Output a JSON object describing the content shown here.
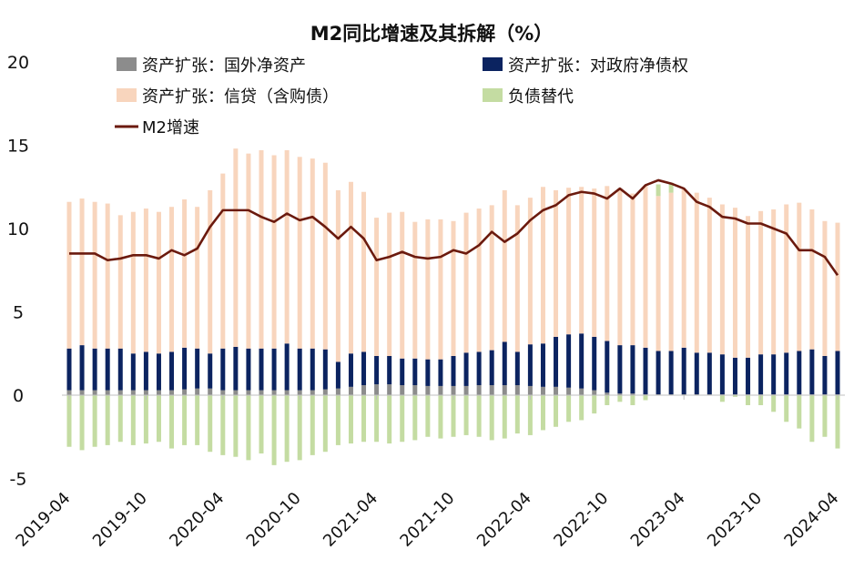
{
  "chart_data": {
    "type": "bar",
    "stacked": true,
    "title": "M2同比增速及其拆解（%）",
    "xlabel": "",
    "ylabel": "",
    "ylim": [
      -5,
      20
    ],
    "yticks": [
      -5,
      0,
      5,
      10,
      15,
      20
    ],
    "ytick_labels": [
      "-5",
      "0",
      "5",
      "10",
      "15",
      "20"
    ],
    "legend_position": "top-left",
    "grid": false,
    "colors": {
      "foreign": "#8c8c8c",
      "gov": "#0b2360",
      "credit": "#f8d5bd",
      "sub": "#c4dca2",
      "m2": "#6b1a0e"
    },
    "categories": [
      "2019-04",
      "2019-05",
      "2019-06",
      "2019-07",
      "2019-08",
      "2019-09",
      "2019-10",
      "2019-11",
      "2019-12",
      "2020-01",
      "2020-02",
      "2020-03",
      "2020-04",
      "2020-05",
      "2020-06",
      "2020-07",
      "2020-08",
      "2020-09",
      "2020-10",
      "2020-11",
      "2020-12",
      "2021-01",
      "2021-02",
      "2021-03",
      "2021-04",
      "2021-05",
      "2021-06",
      "2021-07",
      "2021-08",
      "2021-09",
      "2021-10",
      "2021-11",
      "2021-12",
      "2022-01",
      "2022-02",
      "2022-03",
      "2022-04",
      "2022-05",
      "2022-06",
      "2022-07",
      "2022-08",
      "2022-09",
      "2022-10",
      "2022-11",
      "2022-12",
      "2023-01",
      "2023-02",
      "2023-03",
      "2023-04",
      "2023-05",
      "2023-06",
      "2023-07",
      "2023-08",
      "2023-09",
      "2023-10",
      "2023-11",
      "2023-12",
      "2024-01",
      "2024-02",
      "2024-03",
      "2024-04"
    ],
    "xtick_labels": [
      "2019-04",
      "2019-10",
      "2020-04",
      "2020-10",
      "2021-04",
      "2021-10",
      "2022-04",
      "2022-10",
      "2023-04",
      "2023-10",
      "2024-04"
    ],
    "series": [
      {
        "name": "资产扩张：国外净资产",
        "key": "foreign",
        "values": [
          0.3,
          0.3,
          0.3,
          0.3,
          0.3,
          0.3,
          0.3,
          0.3,
          0.3,
          0.35,
          0.4,
          0.4,
          0.3,
          0.3,
          0.3,
          0.3,
          0.3,
          0.3,
          0.3,
          0.3,
          0.35,
          0.4,
          0.5,
          0.6,
          0.65,
          0.65,
          0.6,
          0.6,
          0.55,
          0.55,
          0.55,
          0.55,
          0.6,
          0.6,
          0.6,
          0.6,
          0.55,
          0.5,
          0.5,
          0.45,
          0.4,
          0.3,
          0.15,
          0.1,
          0.1,
          0.05,
          0.05,
          0.05,
          0.05,
          0.05,
          0.05,
          0.05,
          0.05,
          0.05,
          0.05,
          0.05,
          0.05,
          0.05,
          0.05,
          0.05,
          0.05
        ]
      },
      {
        "name": "资产扩张：对政府净债权",
        "key": "gov",
        "values": [
          2.5,
          2.7,
          2.5,
          2.5,
          2.5,
          2.2,
          2.3,
          2.2,
          2.3,
          2.5,
          2.4,
          2.1,
          2.5,
          2.6,
          2.5,
          2.5,
          2.5,
          2.8,
          2.5,
          2.5,
          2.4,
          1.6,
          2.0,
          2.0,
          1.7,
          1.7,
          1.6,
          1.6,
          1.6,
          1.6,
          1.8,
          2.0,
          2.0,
          2.1,
          2.6,
          2.0,
          2.5,
          2.6,
          3.0,
          3.2,
          3.3,
          3.2,
          3.1,
          2.9,
          2.9,
          2.8,
          2.6,
          2.6,
          2.8,
          2.5,
          2.5,
          2.4,
          2.2,
          2.2,
          2.4,
          2.4,
          2.5,
          2.6,
          2.7,
          2.3,
          2.6
        ]
      },
      {
        "name": "资产扩张：信贷（含购债）",
        "key": "credit",
        "values": [
          8.8,
          8.8,
          8.8,
          8.7,
          8.0,
          8.5,
          8.6,
          8.5,
          8.7,
          8.9,
          8.5,
          9.8,
          10.5,
          11.9,
          11.7,
          11.9,
          11.6,
          11.6,
          11.5,
          11.4,
          11.2,
          10.3,
          10.3,
          9.6,
          8.3,
          8.6,
          8.8,
          8.2,
          8.4,
          8.4,
          8.1,
          8.4,
          8.6,
          8.7,
          9.1,
          8.8,
          8.8,
          9.4,
          8.8,
          8.8,
          8.8,
          8.9,
          9.3,
          9.4,
          9.1,
          9.7,
          9.3,
          9.5,
          9.5,
          9.6,
          9.3,
          9.0,
          9.0,
          8.5,
          8.6,
          8.7,
          8.9,
          8.9,
          8.4,
          8.1,
          7.7
        ]
      },
      {
        "name": "负债替代",
        "key": "sub",
        "values": [
          -3.1,
          -3.3,
          -3.1,
          -3.0,
          -2.8,
          -3.0,
          -2.9,
          -2.8,
          -3.2,
          -3.0,
          -3.0,
          -3.4,
          -3.6,
          -3.7,
          -3.9,
          -3.5,
          -4.2,
          -4.0,
          -3.9,
          -3.6,
          -3.4,
          -3.0,
          -2.9,
          -2.8,
          -2.8,
          -2.9,
          -2.8,
          -2.7,
          -2.5,
          -2.6,
          -2.5,
          -2.4,
          -2.5,
          -2.7,
          -2.6,
          -2.3,
          -2.4,
          -2.1,
          -1.9,
          -1.6,
          -1.5,
          -1.1,
          -0.6,
          -0.4,
          -0.6,
          -0.3,
          0.7,
          0.6,
          0,
          0,
          0,
          -0.4,
          -0.1,
          -0.6,
          -0.6,
          -1.0,
          -1.6,
          -2.0,
          -2.8,
          -2.5,
          -3.2
        ]
      }
    ],
    "line": {
      "name": "M2增速",
      "key": "m2",
      "values": [
        8.5,
        8.5,
        8.5,
        8.1,
        8.2,
        8.4,
        8.4,
        8.2,
        8.7,
        8.4,
        8.8,
        10.1,
        11.1,
        11.1,
        11.1,
        10.7,
        10.4,
        10.9,
        10.5,
        10.7,
        10.1,
        9.4,
        10.1,
        9.4,
        8.1,
        8.3,
        8.6,
        8.3,
        8.2,
        8.3,
        8.7,
        8.5,
        9.0,
        9.8,
        9.2,
        9.7,
        10.5,
        11.1,
        11.4,
        12.0,
        12.2,
        12.1,
        11.8,
        12.4,
        11.8,
        12.6,
        12.9,
        12.7,
        12.4,
        11.6,
        11.3,
        10.7,
        10.6,
        10.3,
        10.3,
        10.0,
        9.7,
        8.7,
        8.7,
        8.3,
        7.2
      ]
    }
  }
}
